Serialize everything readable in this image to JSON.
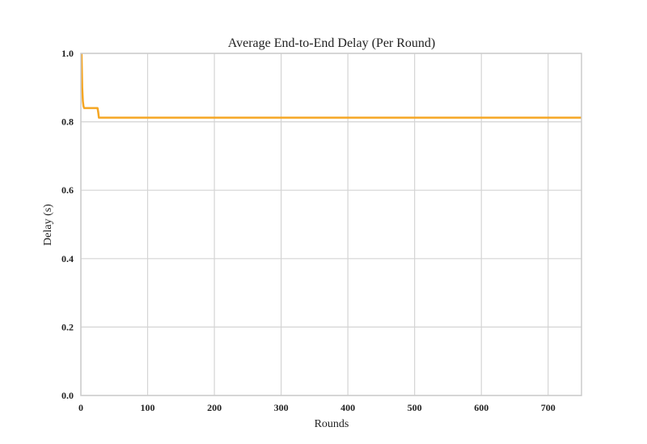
{
  "chart_data": {
    "type": "line",
    "title": "Average End-to-End Delay (Per Round)",
    "xlabel": "Rounds",
    "ylabel": "Delay (s)",
    "xlim": [
      0,
      750
    ],
    "ylim": [
      0.0,
      1.0
    ],
    "xticks": [
      0,
      100,
      200,
      300,
      400,
      500,
      600,
      700
    ],
    "yticks": [
      0.0,
      0.2,
      0.4,
      0.6,
      0.8,
      1.0
    ],
    "xtick_labels": [
      "0",
      "100",
      "200",
      "300",
      "400",
      "500",
      "600",
      "700"
    ],
    "ytick_labels": [
      "0.0",
      "0.2",
      "0.4",
      "0.6",
      "0.8",
      "1.0"
    ],
    "grid": true,
    "series": [
      {
        "color": "#f5a623",
        "x": [
          1,
          2,
          3,
          4,
          5,
          25,
          26,
          27,
          750
        ],
        "y": [
          1.0,
          0.9,
          0.86,
          0.845,
          0.84,
          0.84,
          0.828,
          0.812,
          0.812
        ]
      }
    ]
  }
}
